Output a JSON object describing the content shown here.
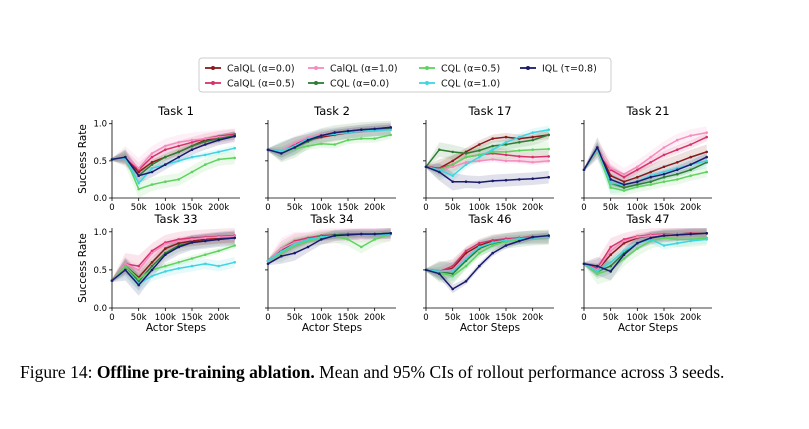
{
  "caption": {
    "label": "Figure 14:",
    "title": "Offline pre-training ablation.",
    "text": "Mean and 95% CIs of rollout performance across 3 seeds."
  },
  "legend": [
    {
      "name": "CalQL (α=0.0)",
      "color": "#8b1a1a"
    },
    {
      "name": "CalQL (α=0.5)",
      "color": "#d6336c"
    },
    {
      "name": "CalQL (α=1.0)",
      "color": "#f48cc0"
    },
    {
      "name": "CQL (α=0.0)",
      "color": "#2e7d32"
    },
    {
      "name": "CQL (α=0.5)",
      "color": "#5fd35f"
    },
    {
      "name": "CQL (α=1.0)",
      "color": "#3fd5e0"
    },
    {
      "name": "IQL (τ=0.8)",
      "color": "#1a1a6e"
    }
  ],
  "axis": {
    "ylabel": "Success Rate",
    "xlabel": "Actor Steps",
    "yticks": [
      "0.0",
      "0.5",
      "1.0"
    ],
    "xticks": [
      "0",
      "50k",
      "100k",
      "150k",
      "200k"
    ],
    "xlim": [
      0,
      240000
    ],
    "ylim": [
      0,
      1.05
    ]
  },
  "chart_data": [
    {
      "type": "line",
      "title": "Task 1",
      "x": [
        0,
        25000,
        50000,
        75000,
        100000,
        125000,
        150000,
        175000,
        200000,
        230000
      ],
      "series": [
        {
          "name": "CalQL (α=0.0)",
          "values": [
            0.52,
            0.55,
            0.35,
            0.48,
            0.55,
            0.62,
            0.7,
            0.78,
            0.82,
            0.85
          ]
        },
        {
          "name": "CalQL (α=0.5)",
          "values": [
            0.52,
            0.55,
            0.38,
            0.55,
            0.65,
            0.7,
            0.75,
            0.8,
            0.83,
            0.86
          ]
        },
        {
          "name": "CalQL (α=1.0)",
          "values": [
            0.52,
            0.56,
            0.4,
            0.6,
            0.7,
            0.75,
            0.78,
            0.8,
            0.82,
            0.84
          ]
        },
        {
          "name": "CQL (α=0.0)",
          "values": [
            0.52,
            0.55,
            0.3,
            0.45,
            0.55,
            0.62,
            0.7,
            0.76,
            0.8,
            0.84
          ]
        },
        {
          "name": "CQL (α=0.5)",
          "values": [
            0.52,
            0.55,
            0.12,
            0.18,
            0.22,
            0.25,
            0.35,
            0.45,
            0.52,
            0.54
          ]
        },
        {
          "name": "CQL (α=1.0)",
          "values": [
            0.52,
            0.54,
            0.2,
            0.4,
            0.45,
            0.5,
            0.55,
            0.58,
            0.62,
            0.67
          ]
        },
        {
          "name": "IQL (τ=0.8)",
          "values": [
            0.52,
            0.55,
            0.3,
            0.35,
            0.45,
            0.55,
            0.65,
            0.72,
            0.78,
            0.83
          ]
        }
      ]
    },
    {
      "type": "line",
      "title": "Task 2",
      "x": [
        0,
        25000,
        50000,
        75000,
        100000,
        125000,
        150000,
        175000,
        200000,
        230000
      ],
      "series": [
        {
          "name": "CalQL (α=0.0)",
          "values": [
            0.65,
            0.62,
            0.7,
            0.78,
            0.82,
            0.85,
            0.88,
            0.9,
            0.92,
            0.93
          ]
        },
        {
          "name": "CalQL (α=0.5)",
          "values": [
            0.65,
            0.63,
            0.72,
            0.8,
            0.85,
            0.88,
            0.9,
            0.92,
            0.93,
            0.95
          ]
        },
        {
          "name": "CalQL (α=1.0)",
          "values": [
            0.65,
            0.64,
            0.74,
            0.82,
            0.86,
            0.88,
            0.9,
            0.91,
            0.93,
            0.94
          ]
        },
        {
          "name": "CQL (α=0.0)",
          "values": [
            0.65,
            0.62,
            0.68,
            0.76,
            0.84,
            0.88,
            0.9,
            0.92,
            0.93,
            0.94
          ]
        },
        {
          "name": "CQL (α=0.5)",
          "values": [
            0.65,
            0.62,
            0.66,
            0.7,
            0.73,
            0.72,
            0.78,
            0.8,
            0.8,
            0.85
          ]
        },
        {
          "name": "CQL (α=1.0)",
          "values": [
            0.65,
            0.63,
            0.7,
            0.8,
            0.84,
            0.86,
            0.88,
            0.9,
            0.91,
            0.92
          ]
        },
        {
          "name": "IQL (τ=0.8)",
          "values": [
            0.65,
            0.6,
            0.68,
            0.78,
            0.84,
            0.88,
            0.9,
            0.92,
            0.93,
            0.95
          ]
        }
      ]
    },
    {
      "type": "line",
      "title": "Task 17",
      "x": [
        0,
        25000,
        50000,
        75000,
        100000,
        125000,
        150000,
        175000,
        200000,
        230000
      ],
      "series": [
        {
          "name": "CalQL (α=0.0)",
          "values": [
            0.42,
            0.4,
            0.5,
            0.62,
            0.72,
            0.8,
            0.82,
            0.8,
            0.82,
            0.85
          ]
        },
        {
          "name": "CalQL (α=0.5)",
          "values": [
            0.42,
            0.4,
            0.45,
            0.55,
            0.58,
            0.6,
            0.58,
            0.56,
            0.55,
            0.56
          ]
        },
        {
          "name": "CalQL (α=1.0)",
          "values": [
            0.42,
            0.38,
            0.42,
            0.48,
            0.5,
            0.52,
            0.5,
            0.5,
            0.48,
            0.5
          ]
        },
        {
          "name": "CQL (α=0.0)",
          "values": [
            0.42,
            0.65,
            0.62,
            0.6,
            0.64,
            0.7,
            0.72,
            0.75,
            0.78,
            0.85
          ]
        },
        {
          "name": "CQL (α=0.5)",
          "values": [
            0.42,
            0.38,
            0.45,
            0.55,
            0.58,
            0.62,
            0.62,
            0.64,
            0.65,
            0.66
          ]
        },
        {
          "name": "CQL (α=1.0)",
          "values": [
            0.42,
            0.38,
            0.3,
            0.45,
            0.55,
            0.65,
            0.75,
            0.82,
            0.88,
            0.92
          ]
        },
        {
          "name": "IQL (τ=0.8)",
          "values": [
            0.42,
            0.35,
            0.22,
            0.22,
            0.21,
            0.23,
            0.24,
            0.25,
            0.26,
            0.28
          ]
        }
      ]
    },
    {
      "type": "line",
      "title": "Task 21",
      "x": [
        0,
        25000,
        50000,
        75000,
        100000,
        125000,
        150000,
        175000,
        200000,
        230000
      ],
      "series": [
        {
          "name": "CalQL (α=0.0)",
          "values": [
            0.38,
            0.68,
            0.3,
            0.22,
            0.28,
            0.35,
            0.42,
            0.48,
            0.55,
            0.62
          ]
        },
        {
          "name": "CalQL (α=0.5)",
          "values": [
            0.38,
            0.66,
            0.38,
            0.28,
            0.38,
            0.48,
            0.58,
            0.65,
            0.72,
            0.82
          ]
        },
        {
          "name": "CalQL (α=1.0)",
          "values": [
            0.38,
            0.64,
            0.4,
            0.32,
            0.42,
            0.55,
            0.68,
            0.78,
            0.84,
            0.88
          ]
        },
        {
          "name": "CQL (α=0.0)",
          "values": [
            0.38,
            0.66,
            0.2,
            0.14,
            0.18,
            0.22,
            0.28,
            0.32,
            0.38,
            0.48
          ]
        },
        {
          "name": "CQL (α=0.5)",
          "values": [
            0.38,
            0.65,
            0.14,
            0.1,
            0.15,
            0.18,
            0.22,
            0.25,
            0.3,
            0.35
          ]
        },
        {
          "name": "CQL (α=1.0)",
          "values": [
            0.38,
            0.66,
            0.2,
            0.18,
            0.22,
            0.3,
            0.35,
            0.4,
            0.45,
            0.5
          ]
        },
        {
          "name": "IQL (τ=0.8)",
          "values": [
            0.38,
            0.68,
            0.25,
            0.18,
            0.22,
            0.28,
            0.32,
            0.38,
            0.45,
            0.55
          ]
        }
      ]
    },
    {
      "type": "line",
      "title": "Task 33",
      "x": [
        0,
        25000,
        50000,
        75000,
        100000,
        125000,
        150000,
        175000,
        200000,
        230000
      ],
      "series": [
        {
          "name": "CalQL (α=0.0)",
          "values": [
            0.36,
            0.55,
            0.4,
            0.6,
            0.78,
            0.85,
            0.88,
            0.9,
            0.92,
            0.93
          ]
        },
        {
          "name": "CalQL (α=0.5)",
          "values": [
            0.36,
            0.58,
            0.55,
            0.75,
            0.86,
            0.9,
            0.92,
            0.93,
            0.94,
            0.95
          ]
        },
        {
          "name": "CalQL (α=1.0)",
          "values": [
            0.36,
            0.58,
            0.5,
            0.72,
            0.84,
            0.88,
            0.9,
            0.92,
            0.93,
            0.94
          ]
        },
        {
          "name": "CQL (α=0.0)",
          "values": [
            0.36,
            0.55,
            0.35,
            0.55,
            0.72,
            0.82,
            0.86,
            0.88,
            0.9,
            0.92
          ]
        },
        {
          "name": "CQL (α=0.5)",
          "values": [
            0.36,
            0.55,
            0.38,
            0.5,
            0.55,
            0.6,
            0.65,
            0.7,
            0.75,
            0.82
          ]
        },
        {
          "name": "CQL (α=1.0)",
          "values": [
            0.36,
            0.5,
            0.32,
            0.42,
            0.48,
            0.52,
            0.55,
            0.58,
            0.55,
            0.6
          ]
        },
        {
          "name": "IQL (τ=0.8)",
          "values": [
            0.36,
            0.5,
            0.3,
            0.5,
            0.7,
            0.8,
            0.86,
            0.88,
            0.9,
            0.92
          ]
        }
      ]
    },
    {
      "type": "line",
      "title": "Task 34",
      "x": [
        0,
        25000,
        50000,
        75000,
        100000,
        125000,
        150000,
        175000,
        200000,
        230000
      ],
      "series": [
        {
          "name": "CalQL (α=0.0)",
          "values": [
            0.62,
            0.75,
            0.85,
            0.9,
            0.93,
            0.95,
            0.97,
            0.97,
            0.97,
            0.98
          ]
        },
        {
          "name": "CalQL (α=0.5)",
          "values": [
            0.62,
            0.78,
            0.88,
            0.92,
            0.95,
            0.96,
            0.97,
            0.97,
            0.97,
            0.98
          ]
        },
        {
          "name": "CalQL (α=1.0)",
          "values": [
            0.62,
            0.78,
            0.86,
            0.9,
            0.94,
            0.95,
            0.96,
            0.96,
            0.97,
            0.97
          ]
        },
        {
          "name": "CQL (α=0.0)",
          "values": [
            0.62,
            0.74,
            0.84,
            0.9,
            0.94,
            0.96,
            0.97,
            0.97,
            0.97,
            0.98
          ]
        },
        {
          "name": "CQL (α=0.5)",
          "values": [
            0.62,
            0.72,
            0.82,
            0.88,
            0.92,
            0.94,
            0.9,
            0.8,
            0.9,
            0.97
          ]
        },
        {
          "name": "CQL (α=1.0)",
          "values": [
            0.62,
            0.74,
            0.84,
            0.9,
            0.93,
            0.95,
            0.96,
            0.96,
            0.96,
            0.97
          ]
        },
        {
          "name": "IQL (τ=0.8)",
          "values": [
            0.58,
            0.68,
            0.72,
            0.8,
            0.9,
            0.95,
            0.96,
            0.97,
            0.97,
            0.98
          ]
        }
      ]
    },
    {
      "type": "line",
      "title": "Task 46",
      "x": [
        0,
        25000,
        50000,
        75000,
        100000,
        125000,
        150000,
        175000,
        200000,
        230000
      ],
      "series": [
        {
          "name": "CalQL (α=0.0)",
          "values": [
            0.5,
            0.48,
            0.52,
            0.72,
            0.82,
            0.88,
            0.9,
            0.92,
            0.93,
            0.93
          ]
        },
        {
          "name": "CalQL (α=0.5)",
          "values": [
            0.5,
            0.48,
            0.55,
            0.75,
            0.85,
            0.89,
            0.91,
            0.92,
            0.93,
            0.93
          ]
        },
        {
          "name": "CalQL (α=1.0)",
          "values": [
            0.5,
            0.48,
            0.5,
            0.68,
            0.8,
            0.86,
            0.89,
            0.91,
            0.92,
            0.93
          ]
        },
        {
          "name": "CQL (α=0.0)",
          "values": [
            0.5,
            0.48,
            0.45,
            0.62,
            0.78,
            0.85,
            0.88,
            0.9,
            0.92,
            0.93
          ]
        },
        {
          "name": "CQL (α=0.5)",
          "values": [
            0.5,
            0.46,
            0.42,
            0.55,
            0.72,
            0.82,
            0.87,
            0.9,
            0.92,
            0.93
          ]
        },
        {
          "name": "CQL (α=1.0)",
          "values": [
            0.5,
            0.48,
            0.48,
            0.65,
            0.8,
            0.86,
            0.89,
            0.91,
            0.92,
            0.93
          ]
        },
        {
          "name": "IQL (τ=0.8)",
          "values": [
            0.5,
            0.45,
            0.25,
            0.35,
            0.55,
            0.72,
            0.82,
            0.88,
            0.93,
            0.95
          ]
        }
      ]
    },
    {
      "type": "line",
      "title": "Task 47",
      "x": [
        0,
        25000,
        50000,
        75000,
        100000,
        125000,
        150000,
        175000,
        200000,
        230000
      ],
      "series": [
        {
          "name": "CalQL (α=0.0)",
          "values": [
            0.58,
            0.5,
            0.7,
            0.85,
            0.92,
            0.95,
            0.96,
            0.97,
            0.98,
            0.98
          ]
        },
        {
          "name": "CalQL (α=0.5)",
          "values": [
            0.58,
            0.52,
            0.8,
            0.9,
            0.94,
            0.96,
            0.97,
            0.97,
            0.98,
            0.98
          ]
        },
        {
          "name": "CalQL (α=1.0)",
          "values": [
            0.58,
            0.5,
            0.75,
            0.88,
            0.93,
            0.95,
            0.96,
            0.97,
            0.97,
            0.98
          ]
        },
        {
          "name": "CQL (α=0.0)",
          "values": [
            0.58,
            0.48,
            0.55,
            0.72,
            0.85,
            0.92,
            0.95,
            0.96,
            0.97,
            0.98
          ]
        },
        {
          "name": "CQL (α=0.5)",
          "values": [
            0.58,
            0.45,
            0.5,
            0.65,
            0.78,
            0.88,
            0.92,
            0.9,
            0.9,
            0.92
          ]
        },
        {
          "name": "CQL (α=1.0)",
          "values": [
            0.58,
            0.48,
            0.6,
            0.75,
            0.85,
            0.9,
            0.82,
            0.85,
            0.88,
            0.9
          ]
        },
        {
          "name": "IQL (τ=0.8)",
          "values": [
            0.58,
            0.55,
            0.48,
            0.7,
            0.85,
            0.92,
            0.95,
            0.96,
            0.97,
            0.98
          ]
        }
      ]
    }
  ]
}
